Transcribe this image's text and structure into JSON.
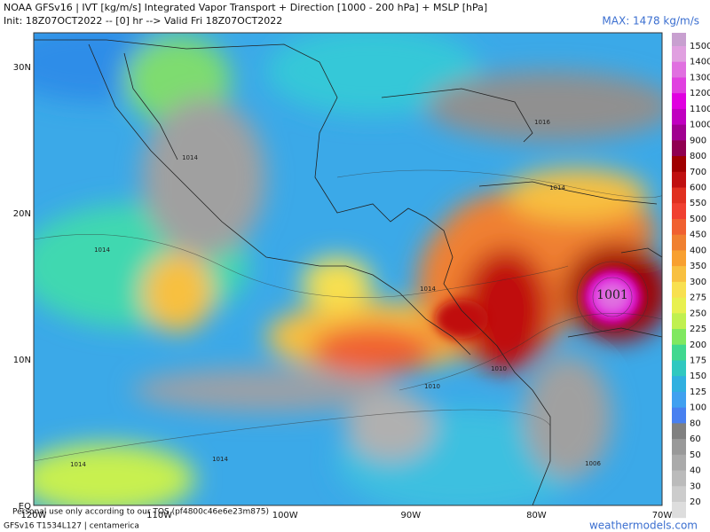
{
  "header": {
    "title": "NOAA GFSv16 | IVT [kg/m/s] Integrated Vapor Transport + Direction [1000 - 200 hPa] + MSLP [hPa]",
    "subtitle": "Init: 18Z07OCT2022 -- [0] hr --> Valid Fri 18Z07OCT2022",
    "max_label": "MAX: 1478 kg/m/s"
  },
  "colorbar": {
    "labels": [
      "1500",
      "1400",
      "1300",
      "1200",
      "1100",
      "1000",
      "900",
      "800",
      "700",
      "600",
      "550",
      "500",
      "450",
      "400",
      "350",
      "300",
      "275",
      "250",
      "225",
      "200",
      "175",
      "150",
      "125",
      "100",
      "80",
      "60",
      "50",
      "40",
      "30",
      "20"
    ]
  },
  "map": {
    "lat_labels": [
      "30N",
      "20N",
      "10N",
      "EQ"
    ],
    "lon_labels": [
      "120W",
      "110W",
      "100W",
      "90W",
      "80W",
      "70W"
    ],
    "contour_labels": [
      "1014",
      "1014",
      "1014",
      "1016",
      "1014",
      "1001",
      "1010",
      "1010",
      "1014",
      "1014",
      "1006"
    ]
  },
  "footer": {
    "disclaimer": "Personal use only according to our TOS (pf4800c46e6e23m875)",
    "model": "GFSv16 T1534L127 | centamerica",
    "site": "weathermodels.com"
  }
}
